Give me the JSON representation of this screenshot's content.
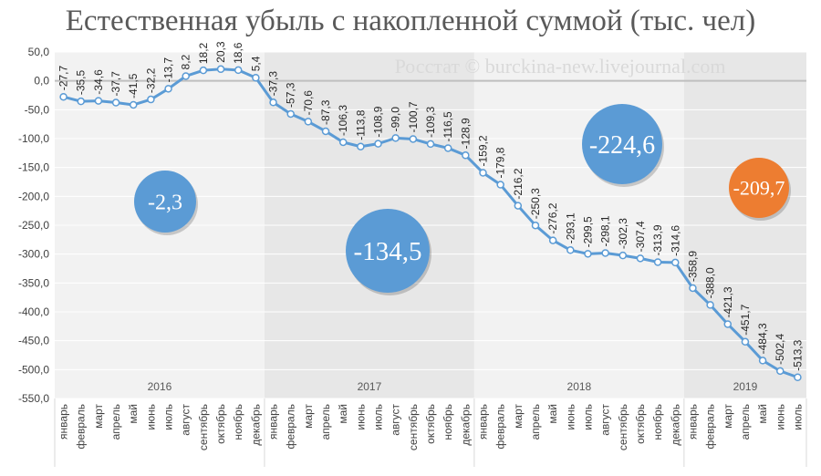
{
  "chart_data": {
    "type": "line",
    "title": "Естественная убыль с накопленной суммой (тыс. чел)",
    "watermark": "Росстат © burckina-new.livejournal.com",
    "ylim": [
      -550,
      50
    ],
    "yticks": [
      "50,0",
      "0,0",
      "-50,0",
      "-100,0",
      "-150,0",
      "-200,0",
      "-250,0",
      "-300,0",
      "-350,0",
      "-400,0",
      "-450,0",
      "-500,0",
      "-550,0"
    ],
    "ytick_values": [
      50,
      0,
      -50,
      -100,
      -150,
      -200,
      -250,
      -300,
      -350,
      -400,
      -450,
      -500,
      -550
    ],
    "grid": "horizontal",
    "legend": "none",
    "line_color": "#5b9bd5",
    "years": [
      {
        "label": "2016",
        "months": [
          "январь",
          "февраль",
          "март",
          "апрель",
          "май",
          "июнь",
          "июль",
          "август",
          "сентябрь",
          "октябрь",
          "ноябрь",
          "декабрь"
        ]
      },
      {
        "label": "2017",
        "months": [
          "январь",
          "февраль",
          "март",
          "апрель",
          "май",
          "июнь",
          "июль",
          "август",
          "сентябрь",
          "октябрь",
          "ноябрь",
          "декабрь"
        ]
      },
      {
        "label": "2018",
        "months": [
          "январь",
          "февраль",
          "март",
          "апрель",
          "май",
          "июнь",
          "июль",
          "август",
          "сентябрь",
          "октябрь",
          "ноябрь",
          "декабрь"
        ]
      },
      {
        "label": "2019",
        "months": [
          "январь",
          "февраль",
          "март",
          "апрель",
          "май",
          "июнь",
          "июль"
        ]
      }
    ],
    "series": [
      {
        "values": [
          -27.7,
          -35.5,
          -34.6,
          -37.7,
          -41.5,
          -32.2,
          -13.7,
          8.2,
          18.2,
          20.3,
          18.6,
          5.4,
          -37.3,
          -57.3,
          -70.6,
          -87.3,
          -106.3,
          -113.8,
          -108.9,
          -99.0,
          -100.7,
          -109.3,
          -116.5,
          -128.9,
          -159.2,
          -179.8,
          -216.2,
          -250.3,
          -276.2,
          -293.1,
          -299.5,
          -298.1,
          -302.3,
          -307.4,
          -313.9,
          -314.6,
          -358.9,
          -388.0,
          -421.3,
          -451.7,
          -484.3,
          -502.4,
          -513.3
        ],
        "labels": [
          "-27,7",
          "-35,5",
          "-34,6",
          "-37,7",
          "-41,5",
          "-32,2",
          "-13,7",
          "8,2",
          "18,2",
          "20,3",
          "18,6",
          "5,4",
          "-37,3",
          "-57,3",
          "-70,6",
          "-87,3",
          "-106,3",
          "-113,8",
          "-108,9",
          "-99,0",
          "-100,7",
          "-109,3",
          "-116,5",
          "-128,9",
          "-159,2",
          "-179,8",
          "-216,2",
          "-250,3",
          "-276,2",
          "-293,1",
          "-299,5",
          "-298,1",
          "-302,3",
          "-307,4",
          "-313,9",
          "-314,6",
          "-358,9",
          "-388,0",
          "-421,3",
          "-451,7",
          "-484,3",
          "-502,4",
          "-513,3"
        ]
      }
    ],
    "annotations": [
      {
        "text": "-2,3",
        "year": "2016",
        "color": "#5b9bd5"
      },
      {
        "text": "-134,5",
        "year": "2017",
        "color": "#5b9bd5"
      },
      {
        "text": "-224,6",
        "year": "2018",
        "color": "#5b9bd5"
      },
      {
        "text": "-209,7",
        "year": "2019",
        "color": "#ed7d31"
      }
    ]
  }
}
